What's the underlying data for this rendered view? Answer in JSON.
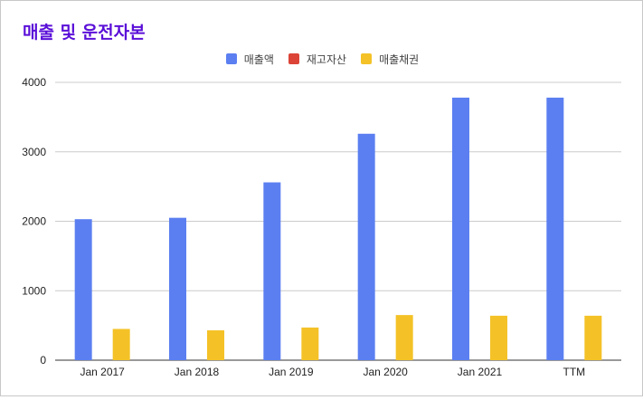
{
  "chart_data": {
    "type": "bar",
    "title": "매출 및 운전자본",
    "categories": [
      "Jan 2017",
      "Jan 2018",
      "Jan 2019",
      "Jan 2020",
      "Jan 2021",
      "TTM"
    ],
    "series": [
      {
        "name": "매출액",
        "color": "#5b7ff1",
        "values": [
          2030,
          2050,
          2560,
          3260,
          3780,
          3780
        ]
      },
      {
        "name": "재고자산",
        "color": "#db4437",
        "values": [
          0,
          0,
          0,
          0,
          0,
          0
        ]
      },
      {
        "name": "매출채권",
        "color": "#f4c227",
        "values": [
          450,
          430,
          470,
          650,
          640,
          640
        ]
      }
    ],
    "yticks": [
      "0",
      "1000",
      "2000",
      "3000",
      "4000"
    ],
    "ylim": [
      0,
      4000
    ],
    "grid": true,
    "legend_position": "top-center"
  }
}
